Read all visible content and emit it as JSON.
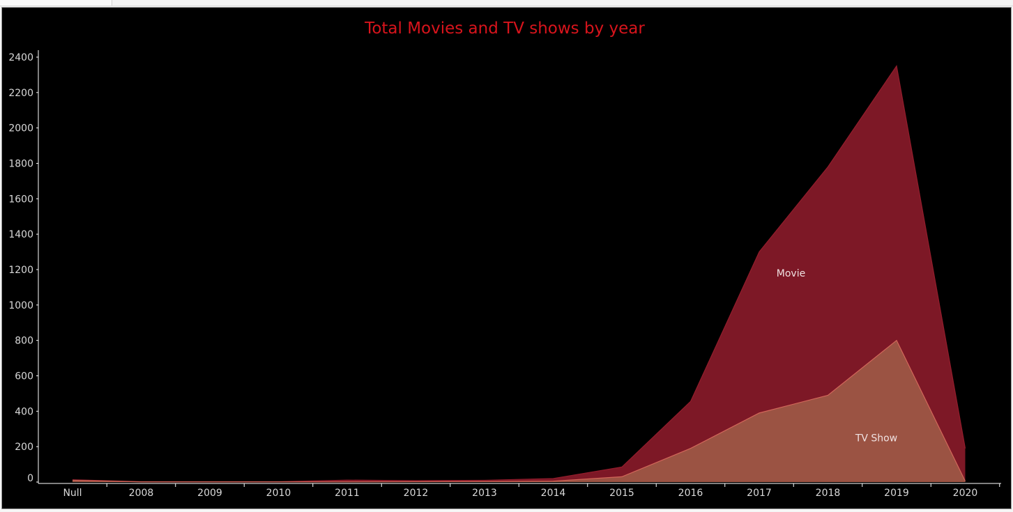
{
  "chart_data": {
    "type": "area",
    "stacked": true,
    "title": "Total Movies and TV shows by year",
    "xlabel": "",
    "ylabel": "",
    "categories": [
      "Null",
      "2008",
      "2009",
      "2010",
      "2011",
      "2012",
      "2013",
      "2014",
      "2015",
      "2016",
      "2017",
      "2018",
      "2019",
      "2020"
    ],
    "ylim": [
      0,
      2400
    ],
    "yticks": [
      0,
      200,
      400,
      600,
      800,
      1000,
      1200,
      1400,
      1600,
      1800,
      2000,
      2200,
      2400
    ],
    "grid": false,
    "series": [
      {
        "name": "TV Show",
        "color": "#9b5343",
        "edge_color": "#d2675a",
        "label_category": "2019",
        "label_value": 250,
        "values": [
          10,
          1,
          1,
          1,
          1,
          2,
          3,
          5,
          30,
          190,
          390,
          490,
          800,
          5
        ]
      },
      {
        "name": "Movie",
        "color": "#7d1826",
        "edge_color": "#931d2c",
        "label_category": "2018",
        "label_value": 1180,
        "values": [
          3,
          1,
          1,
          1,
          10,
          6,
          7,
          15,
          55,
          265,
          910,
          1290,
          1550,
          185
        ]
      }
    ],
    "colors": {
      "background": "#000000",
      "title": "#d8141c",
      "axis": "#ffffff",
      "tick_label": "#d9d9d9",
      "series_label": "#f0e2e2"
    }
  }
}
